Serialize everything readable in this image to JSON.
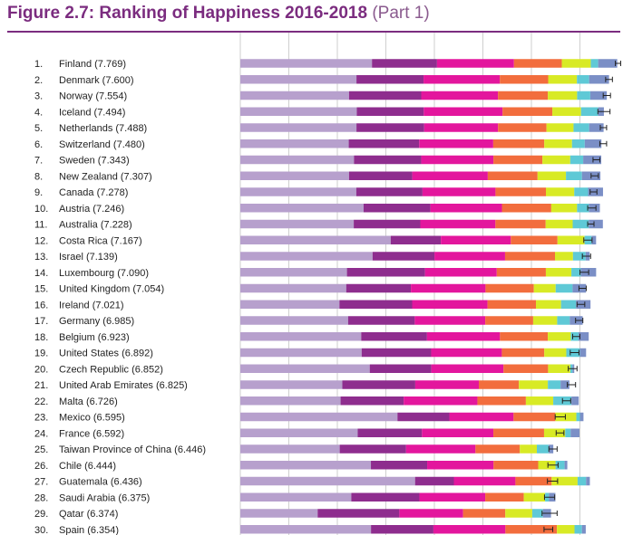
{
  "header": {
    "title": "Figure 2.7: Ranking of Happiness 2016-2018",
    "subtitle": "(Part 1)"
  },
  "chart_data": {
    "type": "bar",
    "stacked": true,
    "orientation": "horizontal",
    "title": "Figure 2.7: Ranking of Happiness 2016-2018 (Part 1)",
    "xlim": [
      0,
      8
    ],
    "grid": true,
    "segment_colors": {
      "dystopia_residual": "#b7a0cd",
      "gdp_per_capita": "#8e2d8e",
      "social_support": "#e3169d",
      "healthy_life_expectancy": "#f26d3d",
      "freedom": "#d8ea25",
      "generosity": "#5fc9d6",
      "perceptions_of_corruption": "#7b8fc6",
      "whisker": "#222222"
    },
    "series_names": [
      "dystopia_residual",
      "gdp_per_capita",
      "social_support",
      "healthy_life_expectancy",
      "freedom",
      "generosity",
      "perceptions_of_corruption"
    ],
    "rows": [
      {
        "rank": "1.",
        "label": "Finland (7.769)",
        "score": 7.769,
        "parts": [
          2.714,
          1.34,
          1.587,
          0.986,
          0.596,
          0.153,
          0.393
        ],
        "ci": [
          7.73,
          7.84
        ]
      },
      {
        "rank": "2.",
        "label": "Denmark (7.600)",
        "score": 7.6,
        "parts": [
          2.394,
          1.383,
          1.573,
          0.996,
          0.592,
          0.252,
          0.41
        ],
        "ci": [
          7.53,
          7.67
        ]
      },
      {
        "rank": "3.",
        "label": "Norway (7.554)",
        "score": 7.554,
        "parts": [
          2.241,
          1.488,
          1.582,
          1.028,
          0.603,
          0.271,
          0.341
        ],
        "ci": [
          7.48,
          7.63
        ]
      },
      {
        "rank": "4.",
        "label": "Iceland (7.494)",
        "score": 7.494,
        "parts": [
          2.401,
          1.38,
          1.624,
          1.026,
          0.591,
          0.354,
          0.118
        ],
        "ci": [
          7.37,
          7.62
        ]
      },
      {
        "rank": "5.",
        "label": "Netherlands (7.488)",
        "score": 7.488,
        "parts": [
          2.394,
          1.396,
          1.522,
          0.999,
          0.557,
          0.322,
          0.298
        ],
        "ci": [
          7.42,
          7.55
        ]
      },
      {
        "rank": "6.",
        "label": "Switzerland (7.480)",
        "score": 7.48,
        "parts": [
          2.235,
          1.452,
          1.526,
          1.052,
          0.572,
          0.263,
          0.343
        ],
        "ci": [
          7.41,
          7.55
        ]
      },
      {
        "rank": "7.",
        "label": "Sweden (7.343)",
        "score": 7.343,
        "parts": [
          2.343,
          1.387,
          1.487,
          1.009,
          0.574,
          0.267,
          0.373
        ],
        "ci": [
          7.27,
          7.41
        ]
      },
      {
        "rank": "8.",
        "label": "New Zealand (7.307)",
        "score": 7.307,
        "parts": [
          2.241,
          1.303,
          1.557,
          1.026,
          0.585,
          0.33,
          0.38
        ],
        "ci": [
          7.23,
          7.38
        ]
      },
      {
        "rank": "9.",
        "label": "Canada (7.278)",
        "score": 7.278,
        "parts": [
          2.39,
          1.365,
          1.505,
          1.039,
          0.584,
          0.285,
          0.308
        ],
        "ci": [
          7.21,
          7.35
        ]
      },
      {
        "rank": "10.",
        "label": "Austria (7.246)",
        "score": 7.246,
        "parts": [
          2.542,
          1.376,
          1.475,
          1.016,
          0.532,
          0.244,
          0.226
        ],
        "ci": [
          7.16,
          7.33
        ]
      },
      {
        "rank": "11.",
        "label": "Australia (7.228)",
        "score": 7.228,
        "parts": [
          2.338,
          1.372,
          1.548,
          1.036,
          0.557,
          0.332,
          0.29
        ],
        "ci": [
          7.16,
          7.29
        ]
      },
      {
        "rank": "12.",
        "label": "Costa Rica (7.167)",
        "score": 7.167,
        "parts": [
          3.1,
          1.034,
          1.441,
          0.963,
          0.558,
          0.144,
          0.093
        ],
        "ci": [
          7.08,
          7.25
        ]
      },
      {
        "rank": "13.",
        "label": "Israel (7.139)",
        "score": 7.139,
        "parts": [
          2.726,
          1.276,
          1.455,
          1.029,
          0.371,
          0.261,
          0.082
        ],
        "ci": [
          7.05,
          7.22
        ]
      },
      {
        "rank": "14.",
        "label": "Luxembourg (7.090)",
        "score": 7.09,
        "parts": [
          2.198,
          1.609,
          1.479,
          1.012,
          0.526,
          0.194,
          0.316
        ],
        "ci": [
          7.0,
          7.18
        ]
      },
      {
        "rank": "15.",
        "label": "United Kingdom (7.054)",
        "score": 7.054,
        "parts": [
          2.183,
          1.333,
          1.538,
          0.996,
          0.45,
          0.348,
          0.278
        ],
        "ci": [
          6.98,
          7.13
        ]
      },
      {
        "rank": "16.",
        "label": "Ireland (7.021)",
        "score": 7.021,
        "parts": [
          2.043,
          1.499,
          1.553,
          0.999,
          0.516,
          0.31,
          0.298
        ],
        "ci": [
          6.94,
          7.1
        ]
      },
      {
        "rank": "17.",
        "label": "Germany (6.985)",
        "score": 6.985,
        "parts": [
          2.222,
          1.373,
          1.454,
          0.987,
          0.495,
          0.261,
          0.265
        ],
        "ci": [
          6.91,
          7.06
        ]
      },
      {
        "rank": "18.",
        "label": "Belgium (6.923)",
        "score": 6.923,
        "parts": [
          2.492,
          1.356,
          1.504,
          0.986,
          0.473,
          0.16,
          0.21
        ],
        "ci": [
          6.85,
          7.0
        ]
      },
      {
        "rank": "19.",
        "label": "United States (6.892)",
        "score": 6.892,
        "parts": [
          2.501,
          1.433,
          1.457,
          0.874,
          0.454,
          0.28,
          0.128
        ],
        "ci": [
          6.8,
          6.98
        ]
      },
      {
        "rank": "20.",
        "label": "Czech Republic (6.852)",
        "score": 6.852,
        "parts": [
          2.668,
          1.269,
          1.487,
          0.92,
          0.457,
          0.046,
          0.036
        ],
        "ci": [
          6.76,
          6.94
        ]
      },
      {
        "rank": "21.",
        "label": "United Arab Emirates (6.825)",
        "score": 6.825,
        "parts": [
          2.103,
          1.503,
          1.31,
          0.825,
          0.598,
          0.262,
          0.182
        ],
        "ci": [
          6.74,
          6.91
        ]
      },
      {
        "rank": "22.",
        "label": "Malta (6.726)",
        "score": 6.726,
        "parts": [
          2.067,
          1.3,
          1.52,
          0.999,
          0.564,
          0.375,
          0.151
        ],
        "ci": [
          6.64,
          6.81
        ]
      },
      {
        "rank": "23.",
        "label": "Mexico (6.595)",
        "score": 6.595,
        "parts": [
          3.239,
          1.07,
          1.323,
          0.861,
          0.433,
          0.074,
          0.073
        ],
        "ci": [
          6.49,
          6.7
        ]
      },
      {
        "rank": "24.",
        "label": "France (6.592)",
        "score": 6.592,
        "parts": [
          2.42,
          1.324,
          1.472,
          1.045,
          0.436,
          0.111,
          0.183
        ],
        "ci": [
          6.51,
          6.67
        ]
      },
      {
        "rank": "25.",
        "label": "Taiwan Province of China (6.446)",
        "score": 6.446,
        "parts": [
          2.049,
          1.368,
          1.43,
          0.914,
          0.351,
          0.242,
          0.097
        ],
        "ci": [
          6.36,
          6.53
        ]
      },
      {
        "rank": "26.",
        "label": "Chile (6.444)",
        "score": 6.444,
        "parts": [
          2.692,
          1.159,
          1.369,
          0.92,
          0.357,
          0.187,
          0.056
        ],
        "ci": [
          6.34,
          6.55
        ]
      },
      {
        "rank": "27.",
        "label": "Guatemala (6.436)",
        "score": 6.436,
        "parts": [
          3.602,
          0.8,
          1.269,
          0.746,
          0.535,
          0.175,
          0.078
        ],
        "ci": [
          6.33,
          6.54
        ]
      },
      {
        "rank": "28.",
        "label": "Saudi Arabia (6.375)",
        "score": 6.375,
        "parts": [
          2.288,
          1.403,
          1.357,
          0.795,
          0.439,
          0.08,
          0.132
        ],
        "ci": [
          6.27,
          6.48
        ]
      },
      {
        "rank": "29.",
        "label": "Qatar (6.374)",
        "score": 6.374,
        "parts": [
          1.594,
          1.684,
          1.313,
          0.871,
          0.555,
          0.22,
          0.167
        ],
        "ci": [
          6.22,
          6.53
        ]
      },
      {
        "rank": "30.",
        "label": "Spain (6.354)",
        "score": 6.354,
        "parts": [
          2.694,
          1.286,
          1.484,
          1.062,
          0.362,
          0.153,
          0.079
        ],
        "ci": [
          6.26,
          6.44
        ]
      }
    ]
  }
}
